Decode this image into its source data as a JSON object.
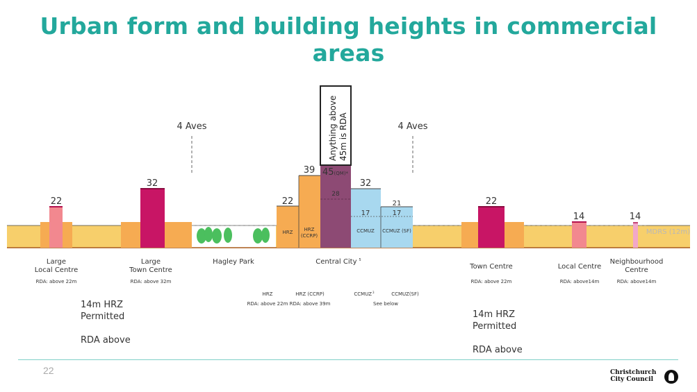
{
  "slide": {
    "title": "Urban form and building heights in commercial areas",
    "page_number": "22",
    "logo_line1": "Christchurch",
    "logo_line2": "City Council"
  },
  "colors": {
    "title": "#23a89c",
    "ground": "#f7cf6b",
    "ground_edge": "#a85a1a",
    "orange": "#f6ab52",
    "pink": "#f2888f",
    "magenta": "#c81565",
    "purple": "#8d4a74",
    "blue": "#a8d8ef"
  },
  "diagram": {
    "aves_left": "4 Aves",
    "aves_right": "4 Aves",
    "callout": "Anything above\n45m is RDA",
    "mdrs": "MDRS (12m)",
    "heights": {
      "large_local": "22",
      "large_town": "32",
      "hrz_left": "22",
      "hrz_ccrp": "39",
      "central": "45",
      "central_sup": "(QM)*",
      "central_inner": "28",
      "ccmuz": "32",
      "ccmuz_sf": "21",
      "ccmuz_17a": "17",
      "ccmuz_17b": "17",
      "town": "22",
      "local": "14",
      "neigh": "14"
    },
    "bar_labels": {
      "hrz": "HRZ",
      "hrz_ccrp": "HRZ\n(CCRP)",
      "ccmuz": "CCMUZ",
      "ccmuz_sf": "CCMUZ (SF)"
    },
    "places": {
      "large_local": "Large\nLocal Centre",
      "large_town": "Large\nTown Centre",
      "hagley": "Hagley Park",
      "central": "Central City",
      "central_sup": "5",
      "town": "Town Centre",
      "local": "Local Centre",
      "neigh": "Neighbourhood\nCentre"
    },
    "rda": {
      "large_local": "RDA: above 22m",
      "large_town": "RDA: above 32m",
      "town": "RDA: above 22m",
      "local": "RDA: above14m",
      "neigh": "RDA: above14m"
    },
    "central_sub": {
      "hrz": "HRZ",
      "hrz_rda": "RDA: above 22m",
      "hrz_ccrp": "HRZ (CCRP)",
      "hrz_ccrp_rda": "RDA: above 39m",
      "ccmuz": "CCMUZ",
      "ccmuz_sup": "3",
      "ccmuz_rda": "See below",
      "ccmuz_sf": "CCMUZ(SF)"
    }
  },
  "notes": {
    "left": "14m HRZ\nPermitted\n\nRDA above",
    "right": "14m HRZ\nPermitted\n\nRDA above"
  }
}
